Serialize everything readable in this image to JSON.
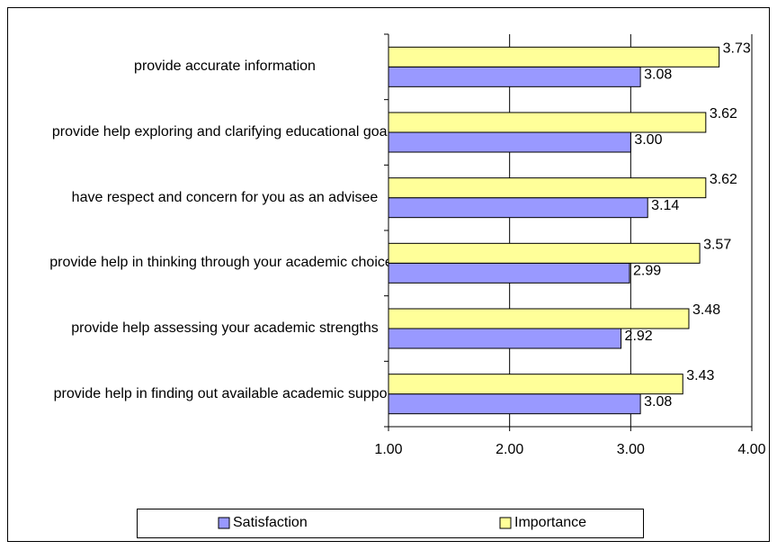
{
  "chart_data": {
    "type": "bar",
    "orientation": "horizontal",
    "categories": [
      "provide accurate information",
      "provide help exploring and clarifying educational goals",
      "have respect and concern for you as an advisee",
      "provide help in thinking through your academic choices",
      "provide help assessing your academic strengths",
      "provide help in finding out available academic support"
    ],
    "series": [
      {
        "name": "Satisfaction",
        "color": "#9999ff",
        "values": [
          3.08,
          3.0,
          3.14,
          2.99,
          2.92,
          3.08
        ],
        "value_labels": [
          "3.08",
          "3.00",
          "3.14",
          "2.99",
          "2.92",
          "3.08"
        ]
      },
      {
        "name": "Importance",
        "color": "#ffff99",
        "values": [
          3.73,
          3.62,
          3.62,
          3.57,
          3.48,
          3.43
        ],
        "value_labels": [
          "3.73",
          "3.62",
          "3.62",
          "3.57",
          "3.48",
          "3.43"
        ]
      }
    ],
    "xlim": [
      1,
      4
    ],
    "xticks": [
      {
        "value": 1,
        "label": "1.00"
      },
      {
        "value": 2,
        "label": "2.00"
      },
      {
        "value": 3,
        "label": "3.00"
      },
      {
        "value": 4,
        "label": "4.00"
      }
    ],
    "grid": true,
    "legend": "bottom"
  }
}
